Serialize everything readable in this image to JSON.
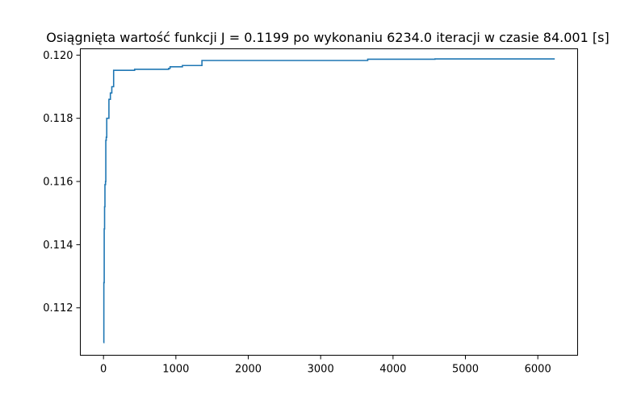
{
  "chart_data": {
    "type": "line",
    "title": "Osiągnięta wartość funkcji J = 0.1199 po wykonaniu 6234.0 iteracji w czasie 84.001 [s]",
    "xlabel": "",
    "ylabel": "",
    "xlim": [
      -320,
      6550
    ],
    "ylim": [
      0.1105,
      0.1202
    ],
    "x_ticks": [
      0,
      1000,
      2000,
      3000,
      4000,
      5000,
      6000
    ],
    "x_tick_labels": [
      "0",
      "1000",
      "2000",
      "3000",
      "4000",
      "5000",
      "6000"
    ],
    "y_ticks": [
      0.112,
      0.114,
      0.116,
      0.118,
      0.12
    ],
    "y_tick_labels": [
      "0.112",
      "0.114",
      "0.116",
      "0.118",
      "0.120"
    ],
    "grid": false,
    "legend": "none",
    "series": [
      {
        "color": "#1f77b4",
        "step": true,
        "points": [
          [
            0,
            0.1109
          ],
          [
            5,
            0.1128
          ],
          [
            10,
            0.1145
          ],
          [
            15,
            0.1152
          ],
          [
            20,
            0.1159
          ],
          [
            28,
            0.116
          ],
          [
            32,
            0.1173
          ],
          [
            38,
            0.1174
          ],
          [
            45,
            0.118
          ],
          [
            70,
            0.118
          ],
          [
            75,
            0.1186
          ],
          [
            90,
            0.1186
          ],
          [
            95,
            0.1188
          ],
          [
            110,
            0.1188
          ],
          [
            115,
            0.119
          ],
          [
            135,
            0.119
          ],
          [
            140,
            0.11952
          ],
          [
            430,
            0.11955
          ],
          [
            900,
            0.11958
          ],
          [
            920,
            0.11963
          ],
          [
            1090,
            0.11967
          ],
          [
            1360,
            0.11983
          ],
          [
            3650,
            0.11987
          ],
          [
            4580,
            0.11988
          ],
          [
            6234,
            0.11988
          ]
        ]
      }
    ]
  }
}
